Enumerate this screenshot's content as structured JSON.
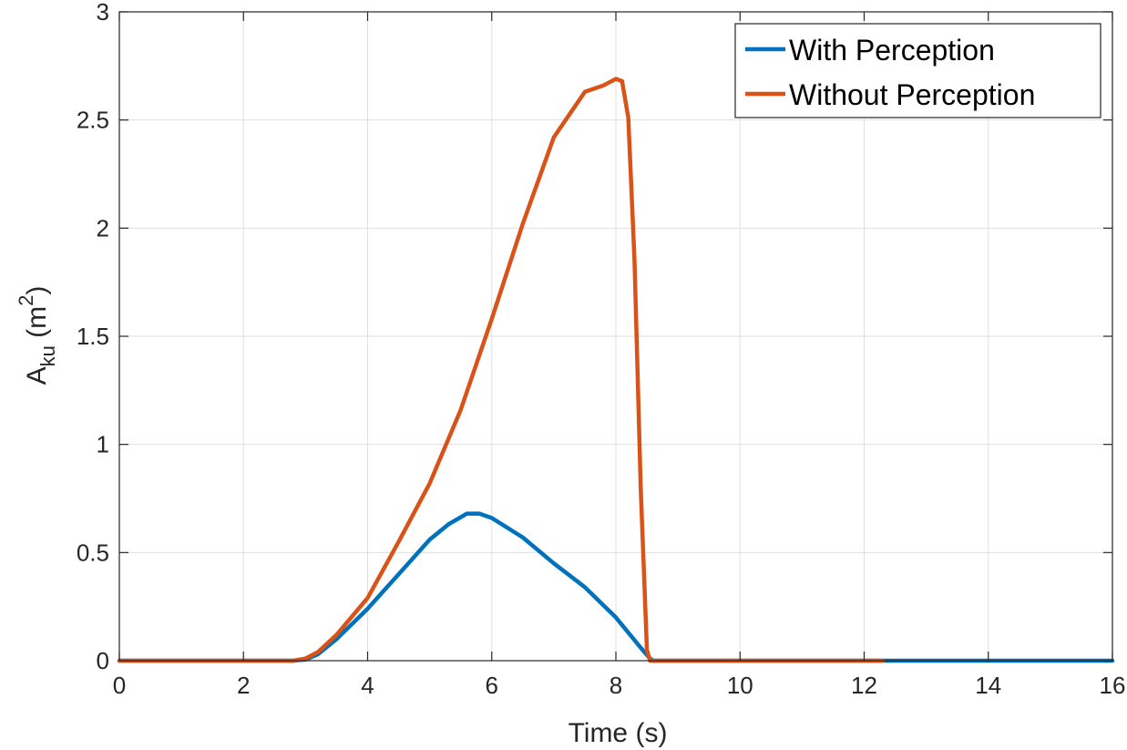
{
  "colors": {
    "with": "#0072BD",
    "without": "#D95319",
    "grid": "#dfdfdf",
    "axis": "#262626"
  },
  "chart_data": {
    "type": "line",
    "title": "",
    "xlabel": "Time (s)",
    "ylabel_main": "A",
    "ylabel_sub": "ku",
    "ylabel_unit_open": " (m",
    "ylabel_unit_sup": "2",
    "ylabel_unit_close": ")",
    "xlim": [
      0,
      16
    ],
    "ylim": [
      0,
      3
    ],
    "xticks": [
      0,
      2,
      4,
      6,
      8,
      10,
      12,
      14,
      16
    ],
    "yticks": [
      0,
      0.5,
      1,
      1.5,
      2,
      2.5,
      3
    ],
    "xtick_labels": [
      "0",
      "2",
      "4",
      "6",
      "8",
      "10",
      "12",
      "14",
      "16"
    ],
    "ytick_labels": [
      "0",
      "0.5",
      "1",
      "1.5",
      "2",
      "2.5",
      "3"
    ],
    "grid": true,
    "legend_position": "top-right",
    "series": [
      {
        "name": "With Perception",
        "color": "#0072BD",
        "x": [
          0,
          2.8,
          3.0,
          3.2,
          3.5,
          4.0,
          4.5,
          5.0,
          5.3,
          5.6,
          5.8,
          6.0,
          6.5,
          7.0,
          7.5,
          8.0,
          8.2,
          8.4,
          8.55,
          8.6,
          10,
          12,
          14,
          16
        ],
        "y": [
          0,
          0,
          0.005,
          0.03,
          0.1,
          0.24,
          0.4,
          0.56,
          0.63,
          0.68,
          0.68,
          0.66,
          0.57,
          0.45,
          0.34,
          0.2,
          0.13,
          0.06,
          0.01,
          0,
          0,
          0,
          0,
          0
        ]
      },
      {
        "name": "Without Perception",
        "color": "#D95319",
        "x": [
          0,
          2.8,
          3.0,
          3.2,
          3.5,
          4.0,
          4.5,
          5.0,
          5.5,
          6.0,
          6.5,
          7.0,
          7.5,
          7.8,
          8.0,
          8.1,
          8.2,
          8.3,
          8.4,
          8.5,
          8.55,
          10,
          12,
          12.3
        ],
        "y": [
          0,
          0,
          0.01,
          0.04,
          0.12,
          0.29,
          0.55,
          0.82,
          1.16,
          1.58,
          2.02,
          2.42,
          2.63,
          2.66,
          2.69,
          2.68,
          2.51,
          1.85,
          0.8,
          0.05,
          0,
          0,
          0,
          0
        ]
      }
    ]
  }
}
